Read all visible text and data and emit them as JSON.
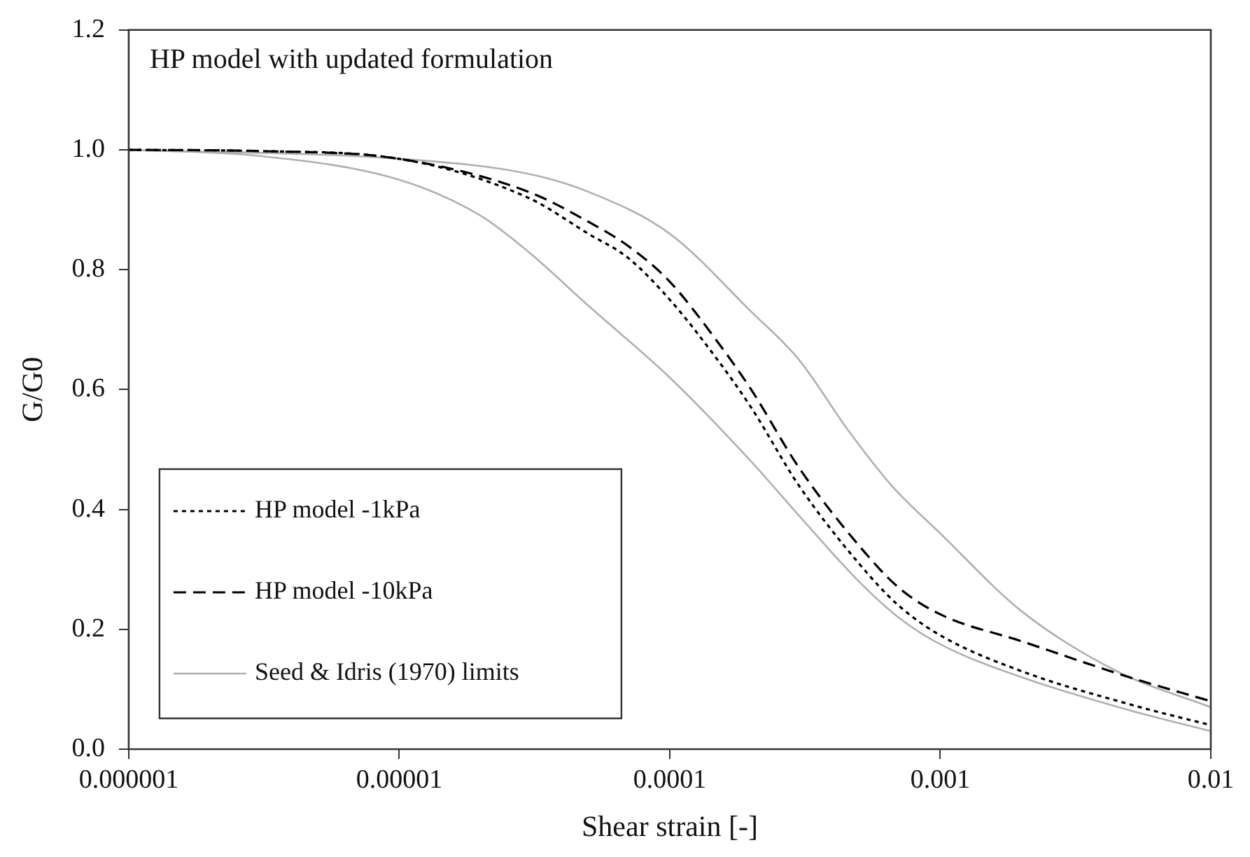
{
  "chart_data": {
    "type": "line",
    "title": "HP model with updated formulation",
    "xlabel": "Shear strain [-]",
    "ylabel": "G/G0",
    "log": "x",
    "xlim": [
      1e-06,
      0.01
    ],
    "xticks": [
      {
        "value": 1e-06,
        "label": "0.000001"
      },
      {
        "value": 1e-05,
        "label": "0.00001"
      },
      {
        "value": 0.0001,
        "label": "0.0001"
      },
      {
        "value": 0.001,
        "label": "0.001"
      },
      {
        "value": 0.01,
        "label": "0.01"
      }
    ],
    "ylim": [
      0,
      1.2
    ],
    "yticks": [
      {
        "value": 0,
        "label": "0.0"
      },
      {
        "value": 0.2,
        "label": "0.2"
      },
      {
        "value": 0.4,
        "label": "0.4"
      },
      {
        "value": 0.6,
        "label": "0.6"
      },
      {
        "value": 0.8,
        "label": "0.8"
      },
      {
        "value": 1,
        "label": "1.0"
      },
      {
        "value": 1.2,
        "label": "1.2"
      }
    ],
    "grid": false,
    "legend": "bottom left",
    "marker": "none",
    "series": [
      {
        "name": "HP model -1kPa",
        "color": "#000000",
        "line_style": "dotted",
        "x": [
          1e-06,
          3e-06,
          1e-05,
          3e-05,
          5e-05,
          7e-05,
          0.0001,
          0.00015,
          0.0002,
          0.0003,
          0.0005,
          0.0007,
          0.001,
          0.002,
          0.005,
          0.01
        ],
        "values": [
          1.0,
          0.998,
          0.985,
          0.92,
          0.86,
          0.82,
          0.75,
          0.65,
          0.57,
          0.44,
          0.31,
          0.24,
          0.19,
          0.13,
          0.075,
          0.04
        ]
      },
      {
        "name": "HP model -10kPa",
        "color": "#000000",
        "line_style": "dashed",
        "x": [
          1e-06,
          3e-06,
          1e-05,
          3e-05,
          5e-05,
          7e-05,
          0.0001,
          0.00015,
          0.0002,
          0.0003,
          0.0005,
          0.0007,
          0.001,
          0.002,
          0.005,
          0.01
        ],
        "values": [
          1.0,
          0.998,
          0.985,
          0.93,
          0.88,
          0.84,
          0.78,
          0.68,
          0.6,
          0.47,
          0.34,
          0.27,
          0.225,
          0.18,
          0.12,
          0.08
        ]
      },
      {
        "name": "Seed & Idris (1970) limits",
        "color": "#b0b0b0",
        "line_style": "solid",
        "x": [
          1e-06,
          3e-06,
          1e-05,
          2e-05,
          3e-05,
          5e-05,
          0.0001,
          0.0002,
          0.0003,
          0.0005,
          0.0007,
          0.001,
          0.002,
          0.005,
          0.01
        ],
        "values": [
          1.0,
          0.99,
          0.95,
          0.89,
          0.83,
          0.74,
          0.62,
          0.48,
          0.39,
          0.28,
          0.22,
          0.175,
          0.12,
          0.065,
          0.03
        ]
      },
      {
        "color": "#b0b0b0",
        "line_style": "solid",
        "x": [
          1e-06,
          1e-05,
          3e-05,
          5e-05,
          0.0001,
          0.0002,
          0.0003,
          0.00046,
          0.00066,
          0.001,
          0.002,
          0.0045,
          0.01
        ],
        "values": [
          1.0,
          0.985,
          0.96,
          0.93,
          0.86,
          0.73,
          0.65,
          0.53,
          0.44,
          0.36,
          0.23,
          0.13,
          0.07
        ]
      }
    ]
  }
}
